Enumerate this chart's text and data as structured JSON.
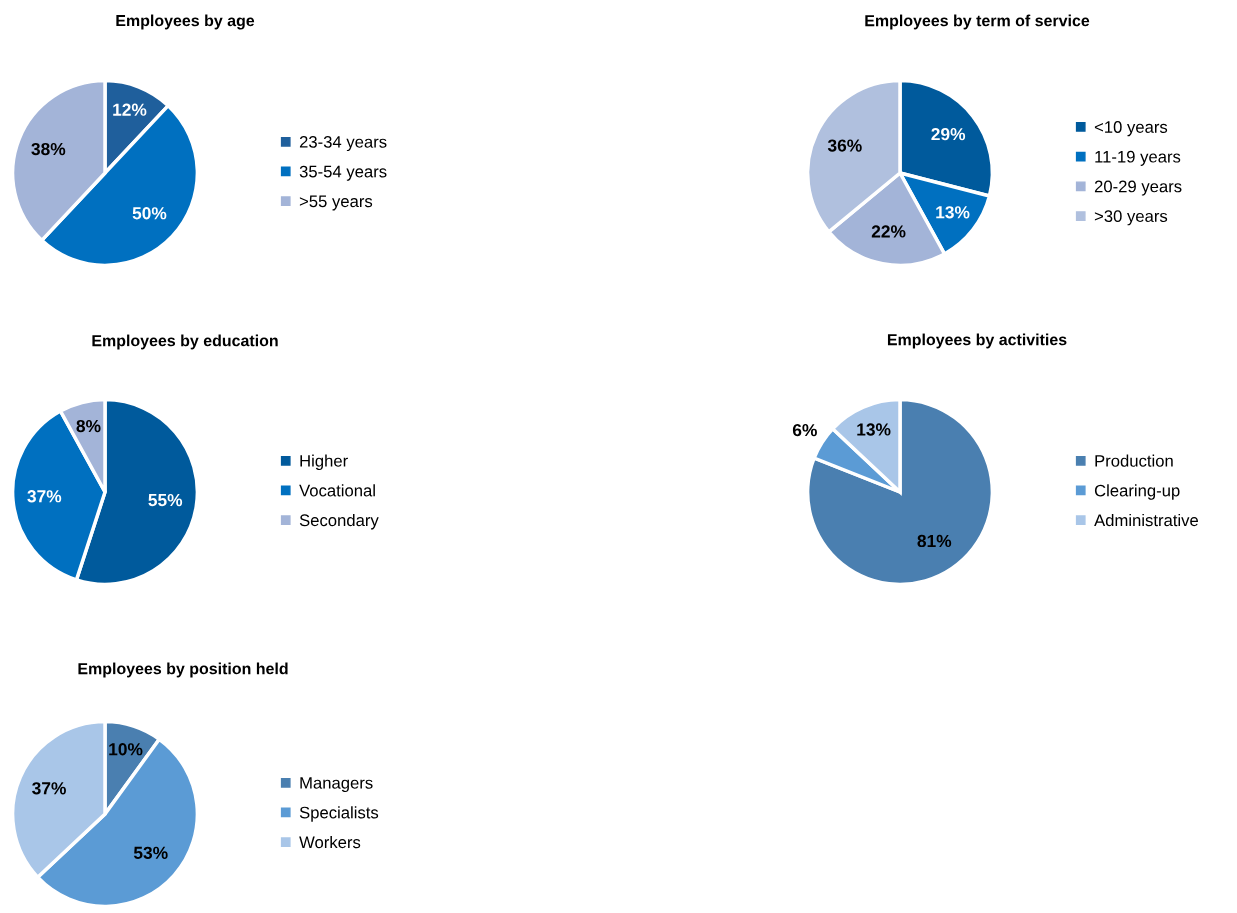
{
  "chart_data": [
    {
      "type": "pie",
      "title": "Employees by age",
      "categories": [
        "23-34 years",
        "35-54 years",
        ">55 years"
      ],
      "values": [
        12,
        50,
        38
      ],
      "colors": [
        "#1f5f9c",
        "#0070c0",
        "#a3b4d8"
      ],
      "value_labels": [
        "12%",
        "50%",
        "38%"
      ],
      "legend": "right"
    },
    {
      "type": "pie",
      "title": "Employees by term of service",
      "categories": [
        "<10 years",
        "11-19 years",
        "20-29 years",
        ">30 years"
      ],
      "values": [
        29,
        13,
        22,
        36
      ],
      "colors": [
        "#005a9c",
        "#0070c0",
        "#a3b4d8",
        "#b0c0de"
      ],
      "value_labels": [
        "29%",
        "13%",
        "22%",
        "36%"
      ],
      "legend": "right"
    },
    {
      "type": "pie",
      "title": "Employees by education",
      "categories": [
        "Higher",
        "Vocational",
        "Secondary"
      ],
      "values": [
        55,
        37,
        8
      ],
      "colors": [
        "#005a9c",
        "#0070c0",
        "#a3b4d8"
      ],
      "value_labels": [
        "55%",
        "37%",
        "8%"
      ],
      "legend": "right"
    },
    {
      "type": "pie",
      "title": "Employees by activities",
      "categories": [
        "Production",
        "Clearing-up",
        "Administrative"
      ],
      "values": [
        81,
        6,
        13
      ],
      "colors": [
        "#4a7fb0",
        "#5b9bd5",
        "#a9c6e8"
      ],
      "value_labels": [
        "81%",
        "6%",
        "13%"
      ],
      "legend": "right"
    },
    {
      "type": "pie",
      "title": "Employees by position held",
      "categories": [
        "Managers",
        "Specialists",
        "Workers"
      ],
      "values": [
        10,
        53,
        37
      ],
      "colors": [
        "#4a7fb0",
        "#5b9bd5",
        "#a9c6e8"
      ],
      "value_labels": [
        "10%",
        "53%",
        "37%"
      ],
      "legend": "right"
    }
  ]
}
